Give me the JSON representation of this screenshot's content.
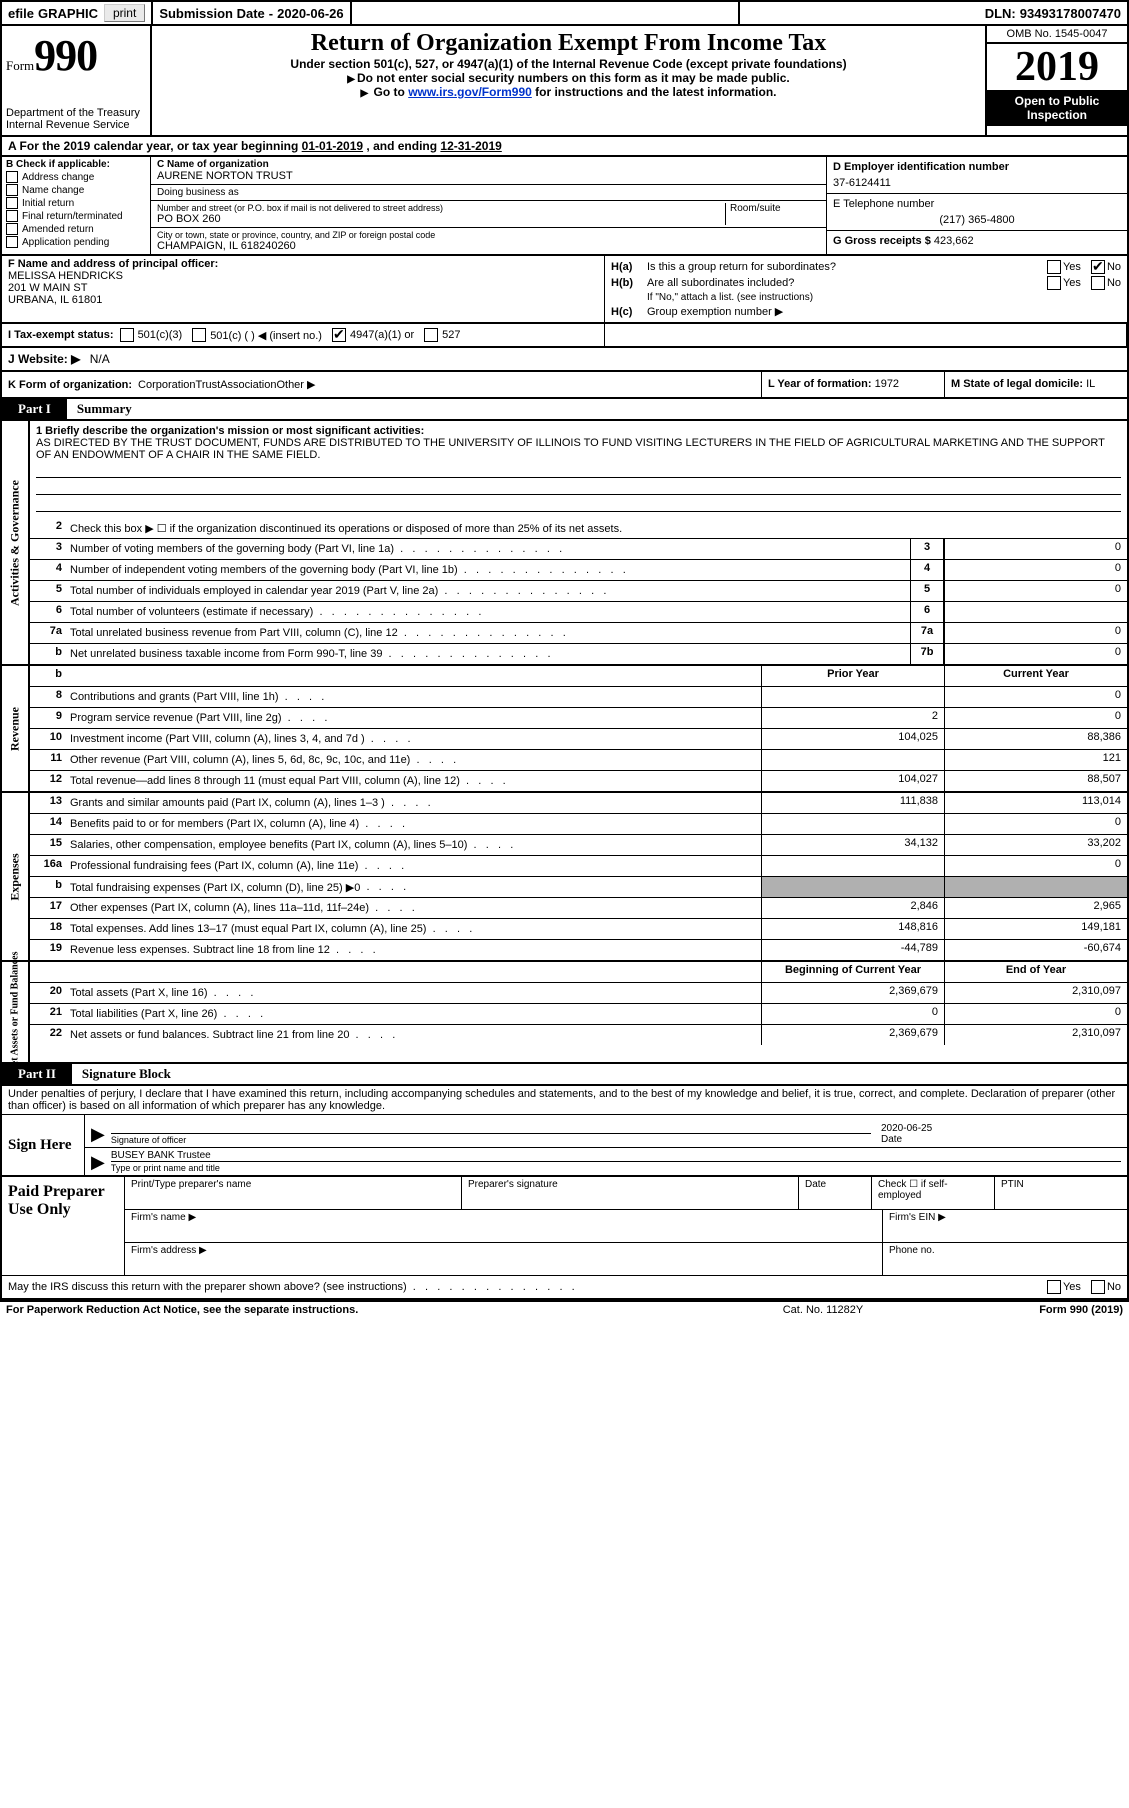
{
  "topbar": {
    "efile": "efile",
    "graphic": "GRAPHIC",
    "print": "print",
    "submission_label": "Submission Date",
    "submission_date": "2020-06-26",
    "dln_label": "DLN:",
    "dln": "93493178007470"
  },
  "header": {
    "form_label": "Form",
    "form_number": "990",
    "title": "Return of Organization Exempt From Income Tax",
    "subtitle": "Under section 501(c), 527, or 4947(a)(1) of the Internal Revenue Code (except private foundations)",
    "note1": "Do not enter social security numbers on this form as it may be made public.",
    "note2_pre": "Go to ",
    "note2_link": "www.irs.gov/Form990",
    "note2_post": " for instructions and the latest information.",
    "dept": "Department of the Treasury",
    "irs": "Internal Revenue Service",
    "omb": "OMB No. 1545-0047",
    "year": "2019",
    "open1": "Open to Public",
    "open2": "Inspection"
  },
  "line_a": {
    "text_pre": "A  For the 2019 calendar year, or tax year beginning ",
    "begin": "01-01-2019",
    "mid": "   , and ending ",
    "end": "12-31-2019"
  },
  "box_b": {
    "label": "B Check if applicable:",
    "items": [
      "Address change",
      "Name change",
      "Initial return",
      "Final return/terminated",
      "Amended return",
      "Application pending"
    ]
  },
  "box_c": {
    "name_label": "C Name of organization",
    "name": "AURENE NORTON TRUST",
    "dba_label": "Doing business as",
    "dba": "",
    "street_label": "Number and street (or P.O. box if mail is not delivered to street address)",
    "room_label": "Room/suite",
    "street": "PO BOX 260",
    "city_label": "City or town, state or province, country, and ZIP or foreign postal code",
    "city": "CHAMPAIGN, IL  618240260"
  },
  "box_d": {
    "label": "D Employer identification number",
    "value": "37-6124411"
  },
  "box_e": {
    "label": "E Telephone number",
    "value": "(217) 365-4800"
  },
  "box_g": {
    "label": "G Gross receipts $",
    "value": "423,662"
  },
  "box_f": {
    "label": "F  Name and address of principal officer:",
    "name": "MELISSA HENDRICKS",
    "street": "201 W MAIN ST",
    "city": "URBANA, IL  61801"
  },
  "box_h": {
    "a_label": "H(a)",
    "a_text": "Is this a group return for subordinates?",
    "a_yes": "Yes",
    "a_no": "No",
    "a_checked": "no",
    "b_label": "H(b)",
    "b_text": "Are all subordinates included?",
    "b_note": "If \"No,\" attach a list. (see instructions)",
    "c_label": "H(c)",
    "c_text": "Group exemption number ▶"
  },
  "box_i": {
    "label": "I  Tax-exempt status:",
    "opts": [
      "501(c)(3)",
      "501(c) (  ) ◀ (insert no.)",
      "4947(a)(1) or",
      "527"
    ],
    "checked_index": 2
  },
  "box_j": {
    "label": "J  Website: ▶",
    "value": "N/A"
  },
  "box_k": {
    "label": "K Form of organization:",
    "opts": [
      "Corporation",
      "Trust",
      "Association",
      "Other ▶"
    ],
    "checked_index": 1
  },
  "box_l": {
    "label": "L Year of formation:",
    "value": "1972"
  },
  "box_m": {
    "label": "M State of legal domicile:",
    "value": "IL"
  },
  "part1": {
    "label": "Part I",
    "title": "Summary",
    "mission_label": "1  Briefly describe the organization's mission or most significant activities:",
    "mission": "AS DIRECTED BY THE TRUST DOCUMENT, FUNDS ARE DISTRIBUTED TO THE UNIVERSITY OF ILLINOIS TO FUND VISITING LECTURERS IN THE FIELD OF AGRICULTURAL MARKETING AND THE SUPPORT OF AN ENDOWMENT OF A CHAIR IN THE SAME FIELD.",
    "line2": "Check this box ▶ ☐  if the organization discontinued its operations or disposed of more than 25% of its net assets.",
    "sections": {
      "gov_label": "Activities & Governance",
      "rev_label": "Revenue",
      "exp_label": "Expenses",
      "net_label": "Net Assets or Fund Balances"
    },
    "rows_gov": [
      {
        "n": "3",
        "d": "Number of voting members of the governing body (Part VI, line 1a)",
        "rn": "3",
        "v": "0"
      },
      {
        "n": "4",
        "d": "Number of independent voting members of the governing body (Part VI, line 1b)",
        "rn": "4",
        "v": "0"
      },
      {
        "n": "5",
        "d": "Total number of individuals employed in calendar year 2019 (Part V, line 2a)",
        "rn": "5",
        "v": "0"
      },
      {
        "n": "6",
        "d": "Total number of volunteers (estimate if necessary)",
        "rn": "6",
        "v": ""
      },
      {
        "n": "7a",
        "d": "Total unrelated business revenue from Part VIII, column (C), line 12",
        "rn": "7a",
        "v": "0"
      },
      {
        "n": "b",
        "d": "Net unrelated business taxable income from Form 990-T, line 39",
        "rn": "7b",
        "v": "0"
      }
    ],
    "col_headers": {
      "prior": "Prior Year",
      "current": "Current Year"
    },
    "rows_rev": [
      {
        "n": "8",
        "d": "Contributions and grants (Part VIII, line 1h)",
        "p": "",
        "c": "0"
      },
      {
        "n": "9",
        "d": "Program service revenue (Part VIII, line 2g)",
        "p": "2",
        "c": "0"
      },
      {
        "n": "10",
        "d": "Investment income (Part VIII, column (A), lines 3, 4, and 7d )",
        "p": "104,025",
        "c": "88,386"
      },
      {
        "n": "11",
        "d": "Other revenue (Part VIII, column (A), lines 5, 6d, 8c, 9c, 10c, and 11e)",
        "p": "",
        "c": "121"
      },
      {
        "n": "12",
        "d": "Total revenue—add lines 8 through 11 (must equal Part VIII, column (A), line 12)",
        "p": "104,027",
        "c": "88,507"
      }
    ],
    "rows_exp": [
      {
        "n": "13",
        "d": "Grants and similar amounts paid (Part IX, column (A), lines 1–3 )",
        "p": "111,838",
        "c": "113,014"
      },
      {
        "n": "14",
        "d": "Benefits paid to or for members (Part IX, column (A), line 4)",
        "p": "",
        "c": "0"
      },
      {
        "n": "15",
        "d": "Salaries, other compensation, employee benefits (Part IX, column (A), lines 5–10)",
        "p": "34,132",
        "c": "33,202"
      },
      {
        "n": "16a",
        "d": "Professional fundraising fees (Part IX, column (A), line 11e)",
        "p": "",
        "c": "0"
      },
      {
        "n": "b",
        "d": "Total fundraising expenses (Part IX, column (D), line 25) ▶0",
        "p": "grey",
        "c": "grey"
      },
      {
        "n": "17",
        "d": "Other expenses (Part IX, column (A), lines 11a–11d, 11f–24e)",
        "p": "2,846",
        "c": "2,965"
      },
      {
        "n": "18",
        "d": "Total expenses. Add lines 13–17 (must equal Part IX, column (A), line 25)",
        "p": "148,816",
        "c": "149,181"
      },
      {
        "n": "19",
        "d": "Revenue less expenses. Subtract line 18 from line 12",
        "p": "-44,789",
        "c": "-60,674"
      }
    ],
    "net_headers": {
      "begin": "Beginning of Current Year",
      "end": "End of Year"
    },
    "rows_net": [
      {
        "n": "20",
        "d": "Total assets (Part X, line 16)",
        "p": "2,369,679",
        "c": "2,310,097"
      },
      {
        "n": "21",
        "d": "Total liabilities (Part X, line 26)",
        "p": "0",
        "c": "0"
      },
      {
        "n": "22",
        "d": "Net assets or fund balances. Subtract line 21 from line 20",
        "p": "2,369,679",
        "c": "2,310,097"
      }
    ]
  },
  "part2": {
    "label": "Part II",
    "title": "Signature Block",
    "declaration": "Under penalties of perjury, I declare that I have examined this return, including accompanying schedules and statements, and to the best of my knowledge and belief, it is true, correct, and complete. Declaration of preparer (other than officer) is based on all information of which preparer has any knowledge.",
    "sign_here": "Sign Here",
    "sig_officer": "Signature of officer",
    "sig_date": "2020-06-25",
    "date_label": "Date",
    "officer_name": "BUSEY BANK  Trustee",
    "type_label": "Type or print name and title",
    "paid": "Paid Preparer Use Only",
    "prep_name": "Print/Type preparer's name",
    "prep_sig": "Preparer's signature",
    "prep_date": "Date",
    "prep_check": "Check ☐ if self-employed",
    "ptin": "PTIN",
    "firm_name": "Firm's name   ▶",
    "firm_ein": "Firm's EIN ▶",
    "firm_addr": "Firm's address ▶",
    "phone": "Phone no.",
    "discuss": "May the IRS discuss this return with the preparer shown above? (see instructions)",
    "yes": "Yes",
    "no": "No"
  },
  "footer": {
    "left": "For Paperwork Reduction Act Notice, see the separate instructions.",
    "mid": "Cat. No. 11282Y",
    "right": "Form 990 (2019)"
  }
}
